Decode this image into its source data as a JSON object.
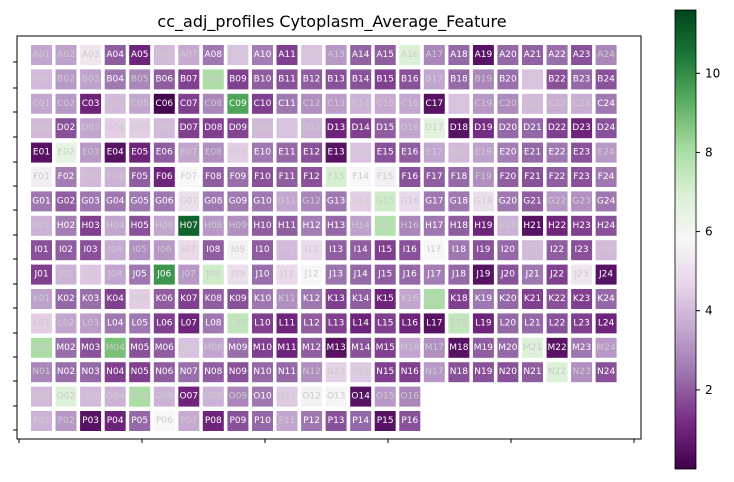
{
  "chart_data": {
    "type": "heatmap",
    "title": "cc_adj_profiles Cytoplasm_Average_Feature",
    "rows": [
      "A",
      "B",
      "C",
      "D",
      "E",
      "F",
      "G",
      "H",
      "I",
      "J",
      "K",
      "L",
      "M",
      "N",
      "O",
      "P"
    ],
    "columns": [
      "01",
      "02",
      "03",
      "04",
      "05",
      "06",
      "07",
      "08",
      "09",
      "10",
      "11",
      "12",
      "13",
      "14",
      "15",
      "16",
      "17",
      "18",
      "19",
      "20",
      "21",
      "22",
      "23",
      "24"
    ],
    "values": [
      [
        3.5,
        3.4,
        5.2,
        2.0,
        1.0,
        4.0,
        3.6,
        2.5,
        4.2,
        2.6,
        1.5,
        4.2,
        3.2,
        2.1,
        2.0,
        6.8,
        2.8,
        2.2,
        0.5,
        2.2,
        2.1,
        2.3,
        1.8,
        2.8
      ],
      [
        4.0,
        3.2,
        3.4,
        2.5,
        2.8,
        2.0,
        1.5,
        8.0,
        1.5,
        2.0,
        1.8,
        2.0,
        1.8,
        1.8,
        1.5,
        1.8,
        3.5,
        2.2,
        2.8,
        2.3,
        4.2,
        1.8,
        2.2,
        1.8
      ],
      [
        3.5,
        3.2,
        1.0,
        4.0,
        3.5,
        0.1,
        1.5,
        2.8,
        9.5,
        1.5,
        2.5,
        3.0,
        3.3,
        3.8,
        3.6,
        3.5,
        0.5,
        4.2,
        3.2,
        2.9,
        4.0,
        3.7,
        3.7,
        2.5
      ],
      [
        4.0,
        1.8,
        3.5,
        4.5,
        4.5,
        4.0,
        1.5,
        1.5,
        1.6,
        4.0,
        4.2,
        3.8,
        1.0,
        1.5,
        2.0,
        3.5,
        6.6,
        0.5,
        1.2,
        2.2,
        2.2,
        1.5,
        1.0,
        1.8
      ],
      [
        0.5,
        6.5,
        3.2,
        0.5,
        1.0,
        2.0,
        3.5,
        3.0,
        4.5,
        2.5,
        2.2,
        1.8,
        0.5,
        4.2,
        1.8,
        2.0,
        3.5,
        4.0,
        3.4,
        2.6,
        2.2,
        2.5,
        1.8,
        3.2
      ],
      [
        5.5,
        2.6,
        4.0,
        3.8,
        2.0,
        1.0,
        5.8,
        2.0,
        2.3,
        1.8,
        2.0,
        1.8,
        7.0,
        5.8,
        5.5,
        1.8,
        2.0,
        2.2,
        3.0,
        2.0,
        1.8,
        2.0,
        1.8,
        2.5
      ],
      [
        2.5,
        2.0,
        2.5,
        2.5,
        2.5,
        2.5,
        5.0,
        2.5,
        2.5,
        2.5,
        3.5,
        2.8,
        2.5,
        4.5,
        7.2,
        4.8,
        2.5,
        2.5,
        5.0,
        2.5,
        2.0,
        3.2,
        3.0,
        2.5
      ],
      [
        3.8,
        2.6,
        1.5,
        3.5,
        1.8,
        3.5,
        10.9,
        3.2,
        3.0,
        2.0,
        2.0,
        2.6,
        2.2,
        3.4,
        7.8,
        2.8,
        2.5,
        2.0,
        1.0,
        3.8,
        0.5,
        1.0,
        1.5,
        1.8
      ],
      [
        1.8,
        2.0,
        1.8,
        3.6,
        3.0,
        3.2,
        4.8,
        2.0,
        5.6,
        2.0,
        4.0,
        4.8,
        2.0,
        2.0,
        1.5,
        1.8,
        5.8,
        2.5,
        1.8,
        2.2,
        4.0,
        2.0,
        1.8,
        4.0
      ],
      [
        1.5,
        3.8,
        4.3,
        3.5,
        2.5,
        9.8,
        3.2,
        7.2,
        5.0,
        2.3,
        4.8,
        5.8,
        2.4,
        2.2,
        2.0,
        2.2,
        2.6,
        2.2,
        0.5,
        1.8,
        2.5,
        1.5,
        5.2,
        0.5
      ],
      [
        3.4,
        2.2,
        2.3,
        1.5,
        4.5,
        2.0,
        1.5,
        2.0,
        1.8,
        2.5,
        3.0,
        2.5,
        1.5,
        2.0,
        1.0,
        3.5,
        8.0,
        1.5,
        2.5,
        2.2,
        1.5,
        1.8,
        1.5,
        2.2
      ],
      [
        4.5,
        3.5,
        3.3,
        2.5,
        2.5,
        1.5,
        1.0,
        2.5,
        7.5,
        1.5,
        1.0,
        2.0,
        1.5,
        1.0,
        1.5,
        1.0,
        0.5,
        7.5,
        1.0,
        2.2,
        2.2,
        1.8,
        1.5,
        1.0
      ],
      [
        8.0,
        2.3,
        1.8,
        8.8,
        1.8,
        2.0,
        4.2,
        3.5,
        2.3,
        1.5,
        1.0,
        2.0,
        0.5,
        1.8,
        1.5,
        3.5,
        3.0,
        0.5,
        2.0,
        2.2,
        6.8,
        0.5,
        2.5,
        3.2
      ],
      [
        2.8,
        2.3,
        2.2,
        1.5,
        1.5,
        2.0,
        2.3,
        2.0,
        1.8,
        2.2,
        2.2,
        3.0,
        4.6,
        4.4,
        1.5,
        1.5,
        3.2,
        1.8,
        1.8,
        1.8,
        2.0,
        6.8,
        3.0,
        1.8
      ],
      [
        4.0,
        6.8,
        4.0,
        3.8,
        8.0,
        3.8,
        1.0,
        3.8,
        2.8,
        2.5,
        4.4,
        5.6,
        5.7,
        0.5,
        3.2,
        2.8,
        null,
        null,
        null,
        null,
        null,
        null,
        null,
        null
      ],
      [
        3.8,
        3.2,
        0.5,
        1.0,
        2.2,
        5.8,
        3.6,
        1.0,
        1.8,
        2.2,
        3.5,
        2.5,
        1.8,
        2.2,
        0.5,
        1.8,
        null,
        null,
        null,
        null,
        null,
        null,
        null,
        null
      ]
    ],
    "colorbar": {
      "colormap": "PRGn",
      "vmin": 0,
      "vmax": 11.6,
      "ticks": [
        2,
        4,
        6,
        8,
        10
      ]
    }
  }
}
